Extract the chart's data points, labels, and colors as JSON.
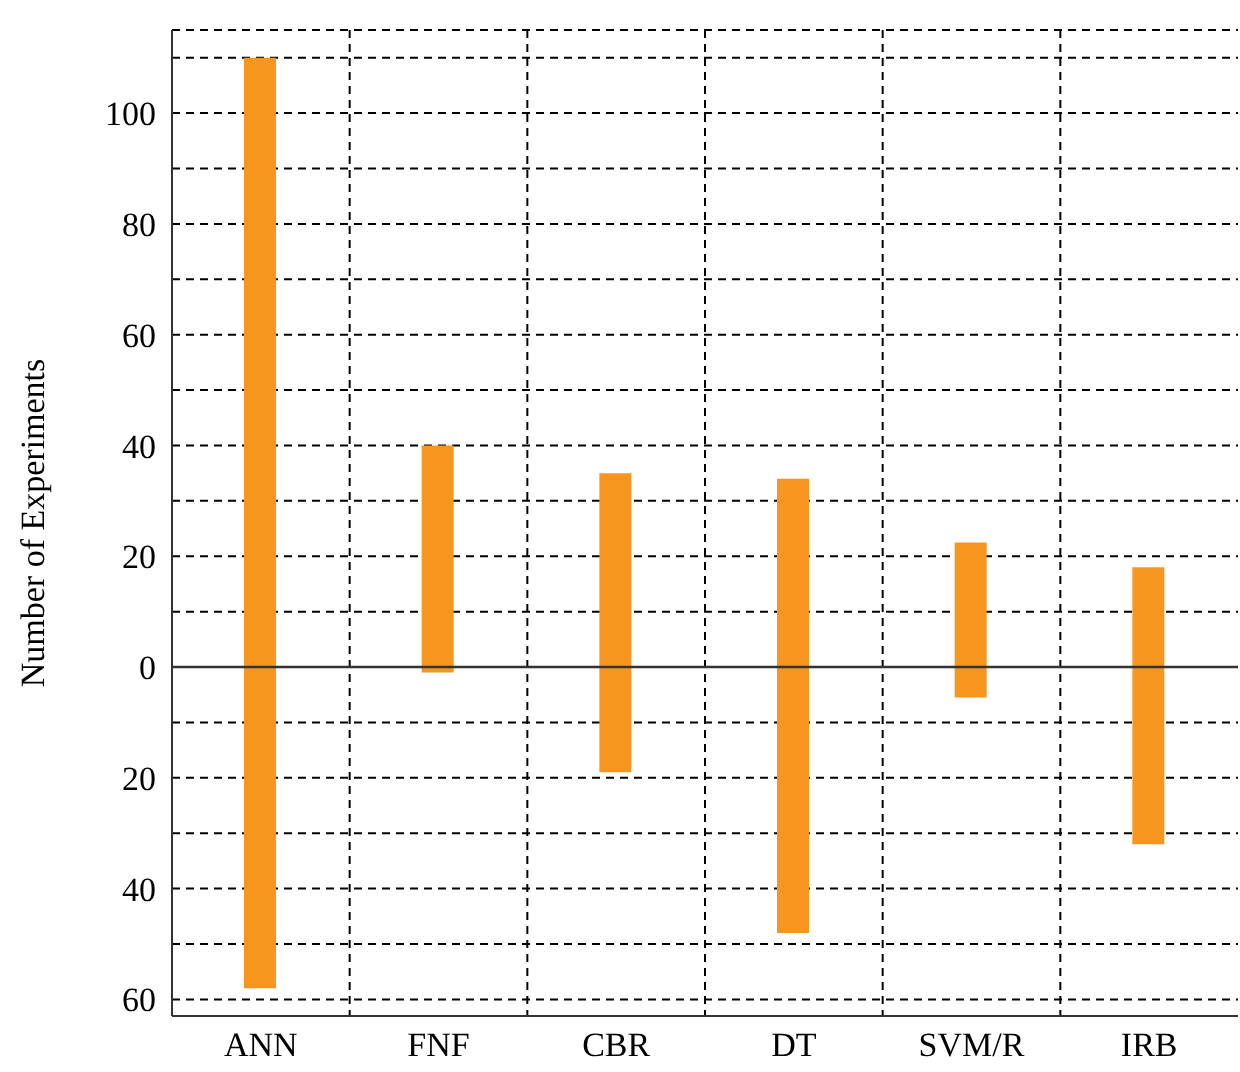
{
  "chart_data": {
    "type": "bar",
    "ylabel": "Number of Experiments",
    "categories": [
      "ANN",
      "FNF",
      "CBR",
      "DT",
      "SVM/R",
      "IRB"
    ],
    "stacked": true,
    "series": [
      {
        "color": "#f7961e",
        "values": [
          110,
          40,
          35,
          34,
          22.5,
          18
        ]
      },
      {
        "color": "#f7961e",
        "values": [
          -58,
          -1,
          -19,
          -48,
          -5.5,
          -32
        ]
      }
    ],
    "ylim": [
      -63,
      115
    ],
    "yticks": [
      {
        "value": -60,
        "label": "60"
      },
      {
        "value": -50,
        "label": null
      },
      {
        "value": -40,
        "label": "40"
      },
      {
        "value": -30,
        "label": null
      },
      {
        "value": -20,
        "label": "20"
      },
      {
        "value": -10,
        "label": null
      },
      0,
      {
        "value": 10,
        "label": null
      },
      20,
      {
        "value": 30,
        "label": null
      },
      40,
      {
        "value": 50,
        "label": null
      },
      60,
      {
        "value": 70,
        "label": null
      },
      80,
      {
        "value": 90,
        "label": null
      },
      100,
      {
        "value": 110,
        "label": null
      }
    ],
    "ref_lines": [
      {
        "axis": "y",
        "value": 0,
        "color": "#333333"
      }
    ],
    "grid": true
  }
}
